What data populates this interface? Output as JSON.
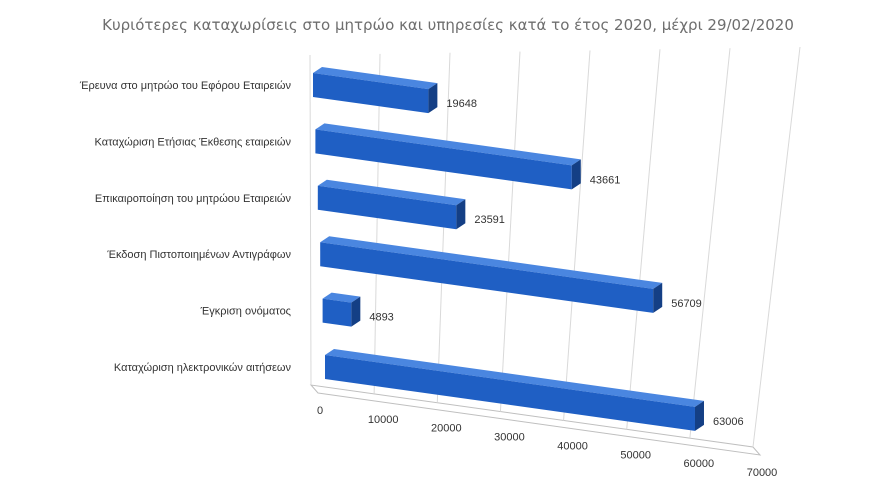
{
  "chart_data": {
    "type": "bar",
    "orientation": "horizontal",
    "style": "3d",
    "title": "Κυριότερες καταχωρίσεις στο μητρώο και υπηρεσίες κατά το έτος 2020, μέχρι 29/02/2020",
    "xlabel": "",
    "ylabel": "",
    "categories": [
      "Έρευνα στο μητρώο του Εφόρου Εταιρειών",
      "Καταχώριση Ετήσιας Έκθεσης εταιρειών",
      "Επικαιροποίηση του μητρώου Εταιρειών",
      "Έκδοση Πιστοποιημένων Αντιγράφων",
      "Έγκριση ονόματος",
      "Καταχώριση ηλεκτρονικών αιτήσεων"
    ],
    "values": [
      19648,
      43661,
      23591,
      56709,
      4893,
      63006
    ],
    "value_labels": [
      "19648",
      "43661",
      "23591",
      "56709",
      "4893",
      "63006"
    ],
    "xlim": [
      0,
      70000
    ],
    "ticks": [
      0,
      10000,
      20000,
      30000,
      40000,
      50000,
      60000,
      70000
    ],
    "tick_labels": [
      "0",
      "10000",
      "20000",
      "30000",
      "40000",
      "50000",
      "60000",
      "70000"
    ],
    "grid": true,
    "legend": "none",
    "colors": {
      "bar_front": "#1f5fc4",
      "bar_top": "#4a86e0",
      "bar_side": "#143f85",
      "title": "#6e6e6e",
      "text": "#333333",
      "grid": "#d9d9d9"
    }
  }
}
